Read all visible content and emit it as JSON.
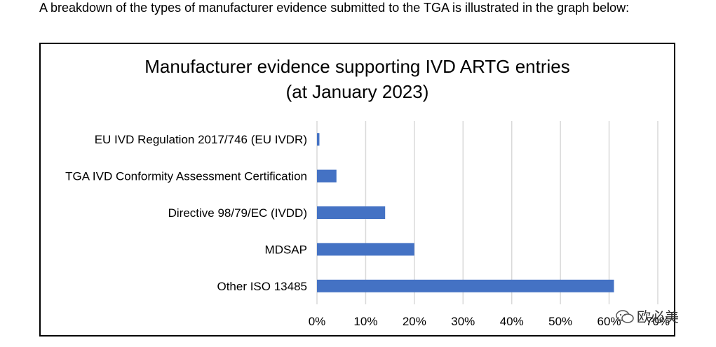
{
  "intro_text": "A breakdown of the types of manufacturer evidence submitted to the TGA is illustrated in the graph below:",
  "chart": {
    "title_line1": "Manufacturer evidence supporting IVD ARTG entries",
    "title_line2": "(at January 2023)"
  },
  "watermark": {
    "text": "欧必美",
    "icon": "wechat-icon"
  },
  "colors": {
    "bar": "#4472C4",
    "grid": "#d9d9d9",
    "border": "#000000"
  },
  "chart_data": {
    "type": "bar",
    "orientation": "horizontal",
    "title": "Manufacturer evidence supporting IVD ARTG entries (at January 2023)",
    "categories": [
      "EU IVD Regulation 2017/746 (EU IVDR)",
      "TGA IVD Conformity Assessment Certification",
      "Directive 98/79/EC (IVDD)",
      "MDSAP",
      "Other ISO 13485"
    ],
    "values": [
      0.5,
      4,
      14,
      20,
      61
    ],
    "xlim": [
      0,
      70
    ],
    "xticks": [
      "0%",
      "10%",
      "20%",
      "30%",
      "40%",
      "50%",
      "60%",
      "70%"
    ],
    "xlabel": "",
    "ylabel": "",
    "grid": true,
    "legend": "none"
  }
}
